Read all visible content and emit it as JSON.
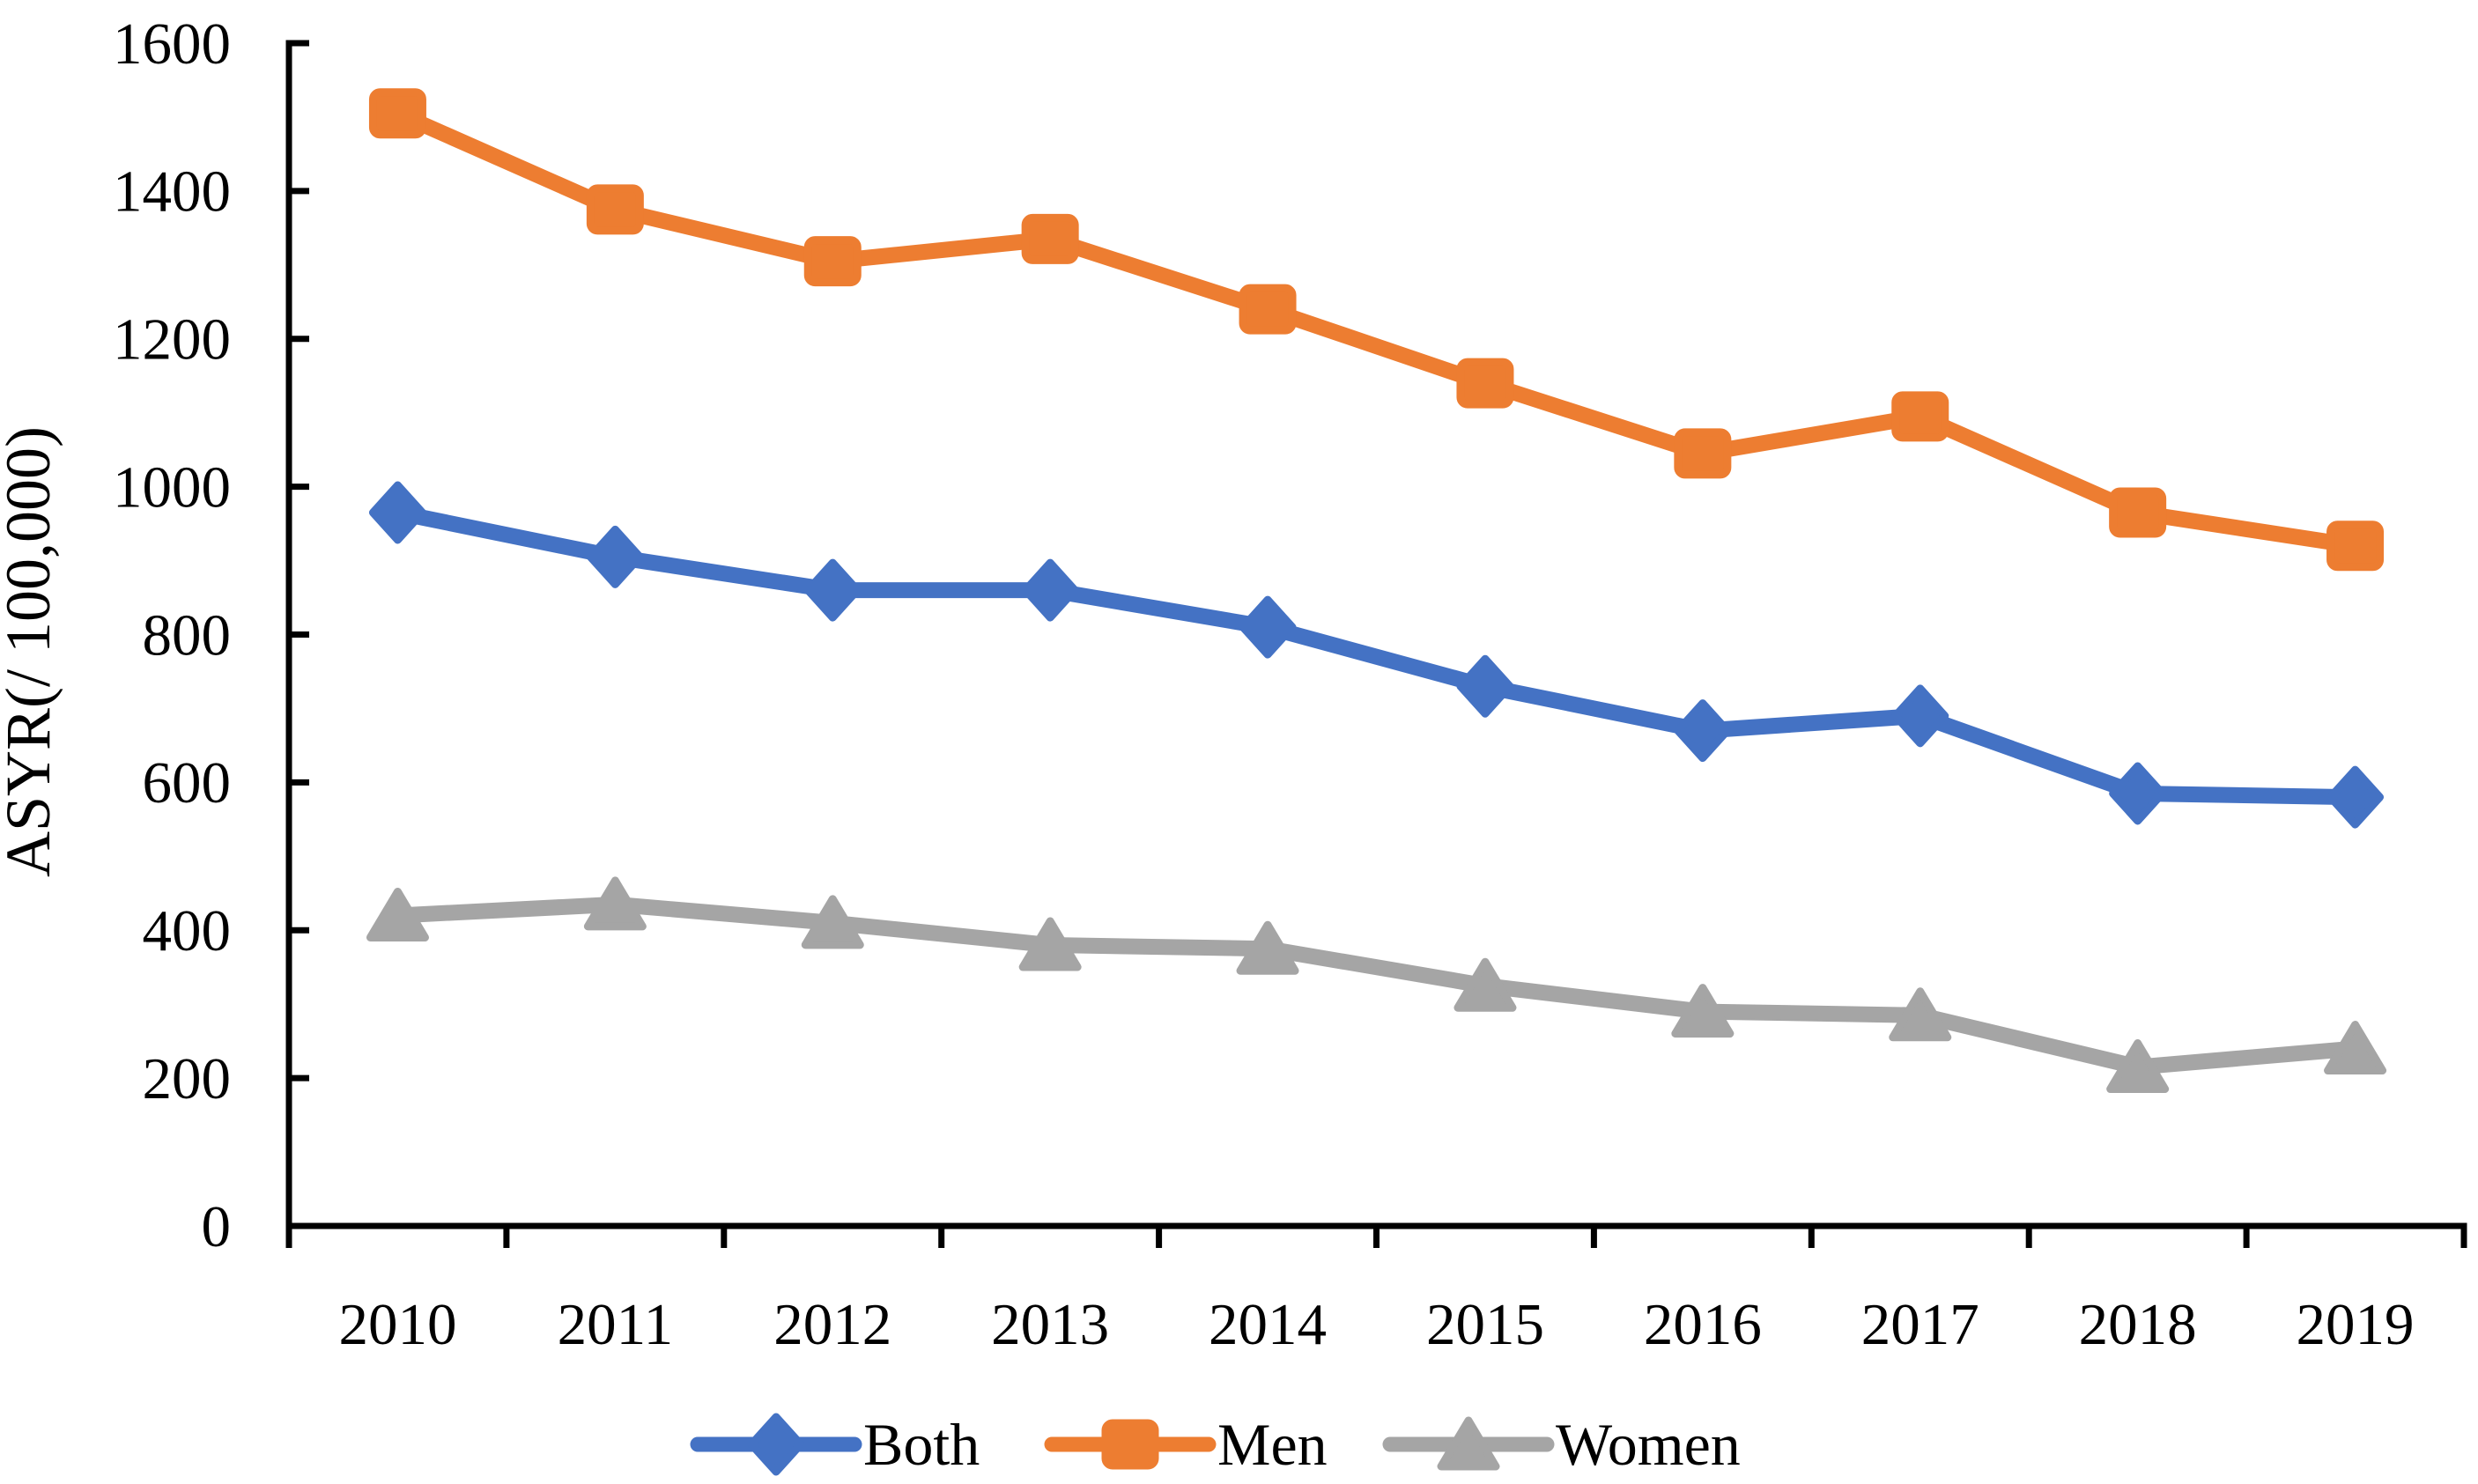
{
  "chart_data": {
    "type": "line",
    "title": "",
    "xlabel": "",
    "ylabel": "ASYR(/ 100,000)",
    "ylim": [
      0,
      1600
    ],
    "ytick_step": 200,
    "ytick_labels": [
      "0",
      "200",
      "400",
      "600",
      "800",
      "1000",
      "1200",
      "1400",
      "1600"
    ],
    "grid": false,
    "legend_position": "bottom",
    "axis_color": "#000000",
    "categories": [
      "2010",
      "2011",
      "2012",
      "2013",
      "2014",
      "2015",
      "2016",
      "2017",
      "2018",
      "2019"
    ],
    "series": [
      {
        "name": "Both",
        "marker": "diamond",
        "color": "#4472C4",
        "values": [
          965,
          905,
          860,
          860,
          810,
          730,
          670,
          690,
          585,
          580
        ]
      },
      {
        "name": "Men",
        "marker": "square",
        "color": "#ED7D31",
        "values": [
          1505,
          1375,
          1305,
          1335,
          1240,
          1140,
          1045,
          1095,
          965,
          920
        ]
      },
      {
        "name": "Women",
        "marker": "triangle",
        "color": "#A5A5A5",
        "values": [
          420,
          435,
          410,
          380,
          375,
          325,
          290,
          285,
          215,
          240
        ]
      }
    ],
    "legend": [
      {
        "label": "Both"
      },
      {
        "label": "Men"
      },
      {
        "label": "Women"
      }
    ]
  }
}
